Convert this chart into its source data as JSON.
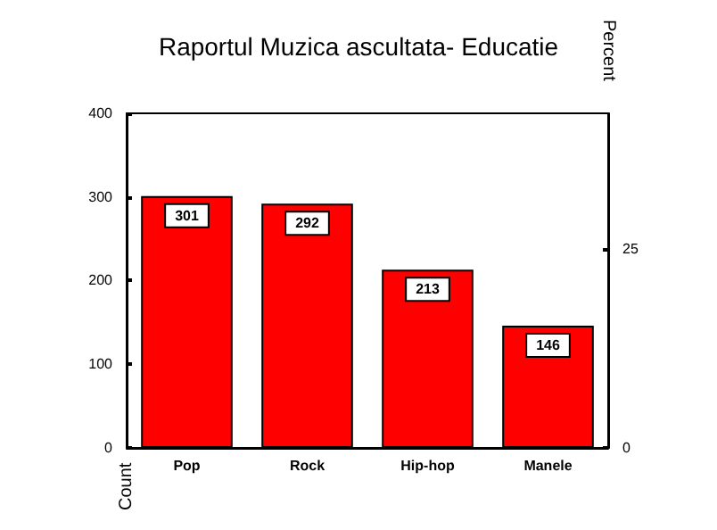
{
  "chart_data": {
    "type": "bar",
    "title": "Raportul Muzica ascultata- Educatie",
    "ylabel": "Count",
    "y2label": "Percent",
    "categories": [
      "Pop",
      "Rock",
      "Hip-hop",
      "Manele"
    ],
    "values": [
      301,
      292,
      213,
      146
    ],
    "color": "#ff0000",
    "ylim": [
      0,
      400
    ],
    "yticks": [
      0,
      100,
      200,
      300,
      400
    ],
    "y2lim": [
      0,
      42
    ],
    "y2ticks": [
      0,
      25
    ],
    "data_labels": true,
    "grid": false
  }
}
